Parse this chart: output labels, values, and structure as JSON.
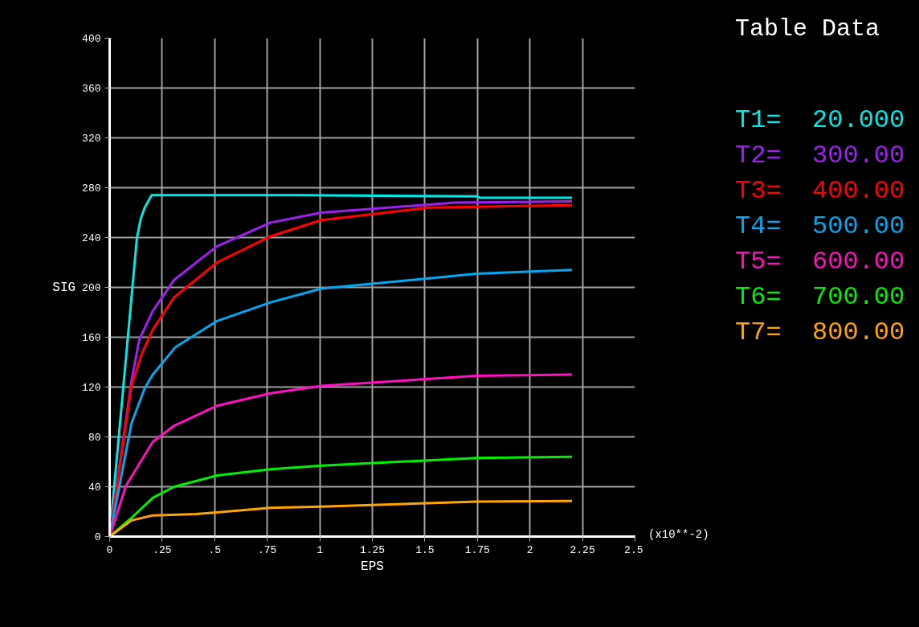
{
  "chart_data": {
    "type": "line",
    "xlabel": "EPS",
    "ylabel": "SIG",
    "legend_title": "Table Data",
    "legend": "right",
    "grid": true,
    "marker": "none",
    "line_style": "solid",
    "xlim": [
      0,
      2.5
    ],
    "xticks": [
      0,
      {
        "value": 0.25,
        "label": ".25"
      },
      {
        "value": 0.5,
        "label": ".5"
      },
      {
        "value": 0.75,
        "label": ".75"
      },
      1,
      1.25,
      1.5,
      1.75,
      2,
      2.25,
      2.5
    ],
    "ylim": [
      0,
      400
    ],
    "yticks": [
      0,
      40,
      80,
      120,
      160,
      200,
      240,
      280,
      320,
      360,
      400
    ],
    "annotations": [
      "(x10**-2)"
    ],
    "series": [
      {
        "name": "T1=  20.000",
        "color": "#00e8e8",
        "x": [
          0,
          0.13,
          0.148,
          0.167,
          0.2,
          0.9,
          1.75,
          1.76,
          2.2
        ],
        "values": [
          0,
          240,
          255,
          264,
          274,
          274,
          273,
          272,
          272
        ]
      },
      {
        "name": "T2=  300.00",
        "color": "#a020f0",
        "x": [
          0,
          0.104,
          0.141,
          0.205,
          0.307,
          0.511,
          0.766,
          1.008,
          1.645,
          2.2
        ],
        "values": [
          0,
          125,
          158,
          181,
          206,
          233,
          252,
          260,
          268,
          269
        ]
      },
      {
        "name": "T3=  400.00",
        "color": "#ff0000",
        "x": [
          0,
          0.104,
          0.154,
          0.205,
          0.307,
          0.511,
          0.766,
          1.008,
          1.517,
          2.2
        ],
        "values": [
          0,
          121,
          147,
          166,
          192,
          220,
          241,
          254,
          264,
          266
        ]
      },
      {
        "name": "T4=  500.00",
        "color": "#00a8f0",
        "x": [
          0,
          0.104,
          0.167,
          0.205,
          0.313,
          0.511,
          0.766,
          1.008,
          1.746,
          2.2
        ],
        "values": [
          0,
          91,
          119,
          130,
          152,
          173,
          188,
          199,
          211,
          214
        ]
      },
      {
        "name": "T5=  600.00",
        "color": "#ff10c0",
        "x": [
          0,
          0.078,
          0.205,
          0.307,
          0.511,
          0.766,
          1.008,
          1.746,
          2.2
        ],
        "values": [
          0,
          41,
          76,
          89,
          105,
          115,
          121,
          129,
          130
        ]
      },
      {
        "name": "T6=  700.00",
        "color": "#00f000",
        "x": [
          0,
          0.104,
          0.205,
          0.307,
          0.511,
          0.766,
          1.008,
          1.746,
          2.2
        ],
        "values": [
          0,
          15,
          31,
          40,
          49,
          54,
          57,
          63,
          64
        ]
      },
      {
        "name": "T7=  800.00",
        "color": "#ffa500",
        "x": [
          0,
          0.104,
          0.205,
          0.41,
          0.766,
          1.008,
          1.746,
          2.2
        ],
        "values": [
          0,
          13,
          17,
          18,
          23,
          24,
          28,
          28.5
        ]
      }
    ]
  }
}
